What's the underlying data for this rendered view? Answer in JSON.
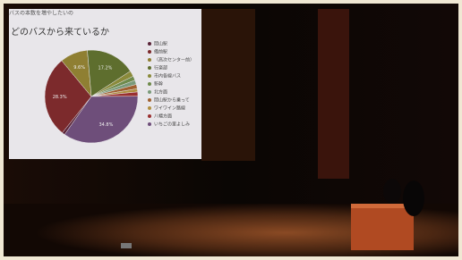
{
  "header": "バスの本数を増やしたいの",
  "chart_data": {
    "type": "pie",
    "title": "どのバスから来ているか",
    "categories": [
      "岡山駅",
      "備前駅",
      "（高次センター前）",
      "行楽部",
      "市内各線バス",
      "新幹",
      "北方面",
      "岡山駅から乗って",
      "ワイワイン路線",
      "八幡方面",
      "いちごの里よしみ"
    ],
    "values": [
      1.0,
      28.3,
      9.6,
      17.2,
      2.0,
      1.5,
      1.5,
      1.5,
      1.1,
      1.5,
      34.8
    ],
    "value_labels": [
      null,
      "28.3%",
      "9.6%",
      "17.2%",
      null,
      null,
      null,
      null,
      null,
      null,
      "34.8%"
    ],
    "colors": [
      "#5a2438",
      "#7c2a2c",
      "#8f7f32",
      "#5e6e2e",
      "#8a8a3a",
      "#6e8a4a",
      "#7a9a7a",
      "#a06030",
      "#b09040",
      "#9a3030",
      "#6e4e7a"
    ],
    "legend": "right"
  }
}
